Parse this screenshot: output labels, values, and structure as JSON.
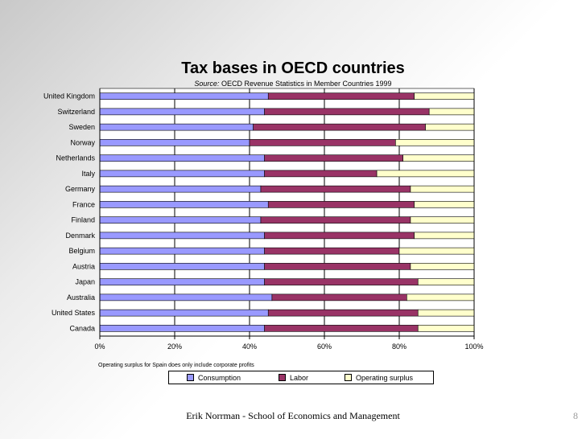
{
  "slide": {
    "footer": "Erik Norrman - School of Economics and Management",
    "page_number": "8"
  },
  "chart_data": {
    "type": "bar",
    "orientation": "horizontal",
    "stacked": "percent",
    "title": "Tax bases in OECD countries",
    "subtitle_source_label": "Source:",
    "subtitle_text": "OECD Revenue Statistics in Member Countries 1999",
    "footnote": "Operating surplus for Spain does only include corporate profits",
    "categories": [
      "United Kingdom",
      "Switzerland",
      "Sweden",
      "Norway",
      "Netherlands",
      "Italy",
      "Germany",
      "France",
      "Finland",
      "Denmark",
      "Belgium",
      "Austria",
      "Japan",
      "Australia",
      "United States",
      "Canada"
    ],
    "series": [
      {
        "name": "Consumption",
        "color": "#9999ff",
        "values": [
          45,
          44,
          41,
          40,
          44,
          44,
          43,
          45,
          43,
          44,
          44,
          44,
          44,
          46,
          45,
          44
        ]
      },
      {
        "name": "Labor",
        "color": "#993366",
        "values": [
          39,
          44,
          46,
          39,
          37,
          30,
          40,
          39,
          40,
          40,
          36,
          39,
          41,
          36,
          40,
          41
        ]
      },
      {
        "name": "Operating surplus",
        "color": "#ffffcc",
        "values": [
          16,
          12,
          13,
          21,
          19,
          26,
          17,
          16,
          17,
          16,
          20,
          17,
          15,
          18,
          15,
          15
        ]
      }
    ],
    "xlim": [
      0,
      100
    ],
    "x_ticks": [
      "0%",
      "20%",
      "40%",
      "60%",
      "80%",
      "100%"
    ],
    "grid": "vertical",
    "legend_position": "bottom"
  }
}
